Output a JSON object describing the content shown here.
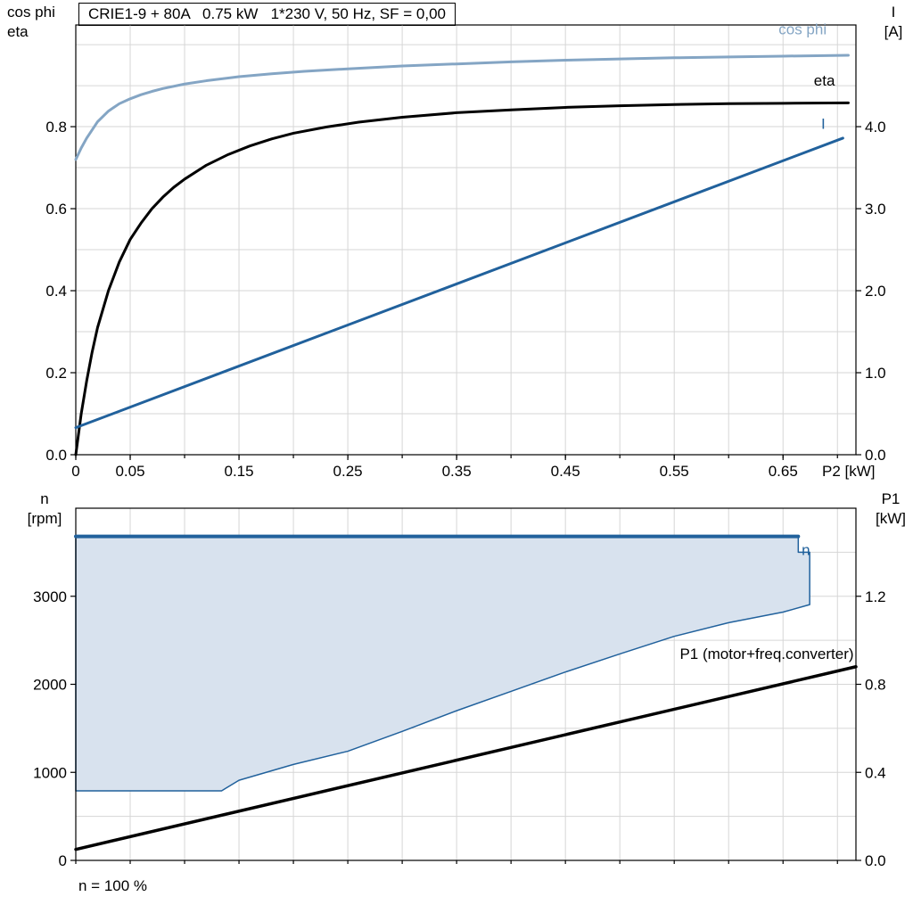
{
  "footer_note": "n = 100 %",
  "colors": {
    "black": "#000000",
    "blue": "#21619c",
    "cos_phi": "#84a5c4",
    "fill": "#d8e2ee",
    "grid": "#d6d6d6"
  },
  "chart_data": [
    {
      "type": "line",
      "title": "CRIE1-9 + 80A   0.75 kW   1*230 V, 50 Hz, SF = 0,00",
      "x_axis": {
        "label": "P2 [kW]",
        "min": 0,
        "max": 0.717,
        "grid_step": 0.05,
        "tick_values": [
          0,
          0.05,
          0.15,
          0.25,
          0.35,
          0.45,
          0.55,
          0.65
        ],
        "tick_labels": [
          "0",
          "0.05",
          "0.15",
          "0.25",
          "0.35",
          "0.45",
          "0.55",
          "0.65"
        ]
      },
      "y_left": {
        "corner": [
          "cos phi",
          "eta"
        ],
        "min": 0,
        "max": 1.048,
        "grid_step": 0.1,
        "tick_values": [
          0,
          0.2,
          0.4,
          0.6,
          0.8
        ],
        "tick_labels": [
          "0.0",
          "0.2",
          "0.4",
          "0.6",
          "0.8"
        ]
      },
      "y_right": {
        "corner": [
          "I",
          "[A]"
        ],
        "min": 0,
        "max": 5.24,
        "tick_values": [
          0,
          1,
          2,
          3,
          4
        ],
        "tick_labels": [
          "0.0",
          "1.0",
          "2.0",
          "3.0",
          "4.0"
        ]
      },
      "series": [
        {
          "name": "cos phi",
          "axis": "left",
          "color_key": "cos_phi",
          "width": 3,
          "points": [
            [
              0,
              0.72
            ],
            [
              0.005,
              0.748
            ],
            [
              0.01,
              0.772
            ],
            [
              0.02,
              0.812
            ],
            [
              0.03,
              0.838
            ],
            [
              0.04,
              0.856
            ],
            [
              0.05,
              0.868
            ],
            [
              0.06,
              0.878
            ],
            [
              0.07,
              0.886
            ],
            [
              0.08,
              0.893
            ],
            [
              0.1,
              0.904
            ],
            [
              0.12,
              0.912
            ],
            [
              0.15,
              0.922
            ],
            [
              0.18,
              0.929
            ],
            [
              0.21,
              0.935
            ],
            [
              0.25,
              0.941
            ],
            [
              0.3,
              0.948
            ],
            [
              0.35,
              0.953
            ],
            [
              0.4,
              0.958
            ],
            [
              0.45,
              0.962
            ],
            [
              0.5,
              0.965
            ],
            [
              0.55,
              0.968
            ],
            [
              0.6,
              0.97
            ],
            [
              0.65,
              0.972
            ],
            [
              0.71,
              0.974
            ]
          ]
        },
        {
          "name": "eta",
          "axis": "left",
          "color_key": "black",
          "width": 3,
          "points": [
            [
              0,
              0
            ],
            [
              0.005,
              0.1
            ],
            [
              0.01,
              0.18
            ],
            [
              0.015,
              0.25
            ],
            [
              0.02,
              0.31
            ],
            [
              0.03,
              0.4
            ],
            [
              0.04,
              0.47
            ],
            [
              0.05,
              0.525
            ],
            [
              0.06,
              0.565
            ],
            [
              0.07,
              0.6
            ],
            [
              0.08,
              0.628
            ],
            [
              0.09,
              0.652
            ],
            [
              0.1,
              0.672
            ],
            [
              0.12,
              0.706
            ],
            [
              0.14,
              0.732
            ],
            [
              0.16,
              0.753
            ],
            [
              0.18,
              0.77
            ],
            [
              0.2,
              0.784
            ],
            [
              0.23,
              0.799
            ],
            [
              0.26,
              0.811
            ],
            [
              0.3,
              0.823
            ],
            [
              0.35,
              0.834
            ],
            [
              0.4,
              0.841
            ],
            [
              0.45,
              0.847
            ],
            [
              0.5,
              0.851
            ],
            [
              0.55,
              0.854
            ],
            [
              0.6,
              0.856
            ],
            [
              0.65,
              0.857
            ],
            [
              0.71,
              0.858
            ]
          ]
        },
        {
          "name": "I",
          "axis": "right",
          "color_key": "blue",
          "width": 3,
          "points": [
            [
              0,
              0.33
            ],
            [
              0.705,
              3.86
            ]
          ]
        }
      ],
      "annotations": [
        {
          "text": "cos phi",
          "x": 0.668,
          "y": 1.025,
          "axis": "left",
          "color_key": "cos_phi",
          "anchor": "middle"
        },
        {
          "text": "eta",
          "x": 0.688,
          "y": 0.9,
          "axis": "left",
          "color_key": "black",
          "anchor": "middle"
        },
        {
          "text": "I",
          "x": 0.687,
          "y": 0.795,
          "axis": "left",
          "color_key": "blue",
          "anchor": "middle"
        }
      ]
    },
    {
      "type": "line",
      "x_axis": {
        "min": 0,
        "max": 0.717,
        "grid_step": 0.05,
        "tick_values": [],
        "tick_labels": []
      },
      "y_left": {
        "corner": [
          "n",
          "[rpm]"
        ],
        "min": 0,
        "max": 4000,
        "grid_step": 500,
        "tick_values": [
          0,
          1000,
          2000,
          3000
        ],
        "tick_labels": [
          "0",
          "1000",
          "2000",
          "3000"
        ]
      },
      "y_right": {
        "corner": [
          "P1",
          "[kW]"
        ],
        "min": 0,
        "max": 1.6,
        "tick_values": [
          0,
          0.4,
          0.8,
          1.2
        ],
        "tick_labels": [
          "0.0",
          "0.4",
          "0.8",
          "1.2"
        ]
      },
      "region": {
        "fill_color_key": "fill",
        "border_color_key": "blue",
        "points": [
          [
            0,
            3680
          ],
          [
            0.664,
            3680
          ],
          [
            0.664,
            3500
          ],
          [
            0.6745,
            3500
          ],
          [
            0.6745,
            2905
          ],
          [
            0.65,
            2820
          ],
          [
            0.6,
            2700
          ],
          [
            0.55,
            2545
          ],
          [
            0.5,
            2345
          ],
          [
            0.45,
            2140
          ],
          [
            0.4,
            1920
          ],
          [
            0.35,
            1700
          ],
          [
            0.3,
            1465
          ],
          [
            0.25,
            1240
          ],
          [
            0.2,
            1090
          ],
          [
            0.15,
            910
          ],
          [
            0.134,
            790
          ],
          [
            0,
            790
          ]
        ]
      },
      "series": [
        {
          "name": "n",
          "axis": "left",
          "color_key": "blue",
          "width": 4,
          "points": [
            [
              0,
              3680
            ],
            [
              0.664,
              3680
            ]
          ]
        },
        {
          "name": "P1 (motor+freq.converter)",
          "axis": "right",
          "color_key": "black",
          "width": 3.5,
          "points": [
            [
              0,
              0.05
            ],
            [
              0.717,
              0.88
            ]
          ]
        }
      ],
      "annotations": [
        {
          "text": "n",
          "x": 0.671,
          "y": 3470,
          "axis": "left",
          "color_key": "blue",
          "anchor": "middle"
        },
        {
          "text": "P1 (motor+freq.converter)",
          "x": 0.715,
          "y": 2290,
          "axis": "left",
          "color_key": "black",
          "anchor": "end"
        }
      ]
    }
  ]
}
